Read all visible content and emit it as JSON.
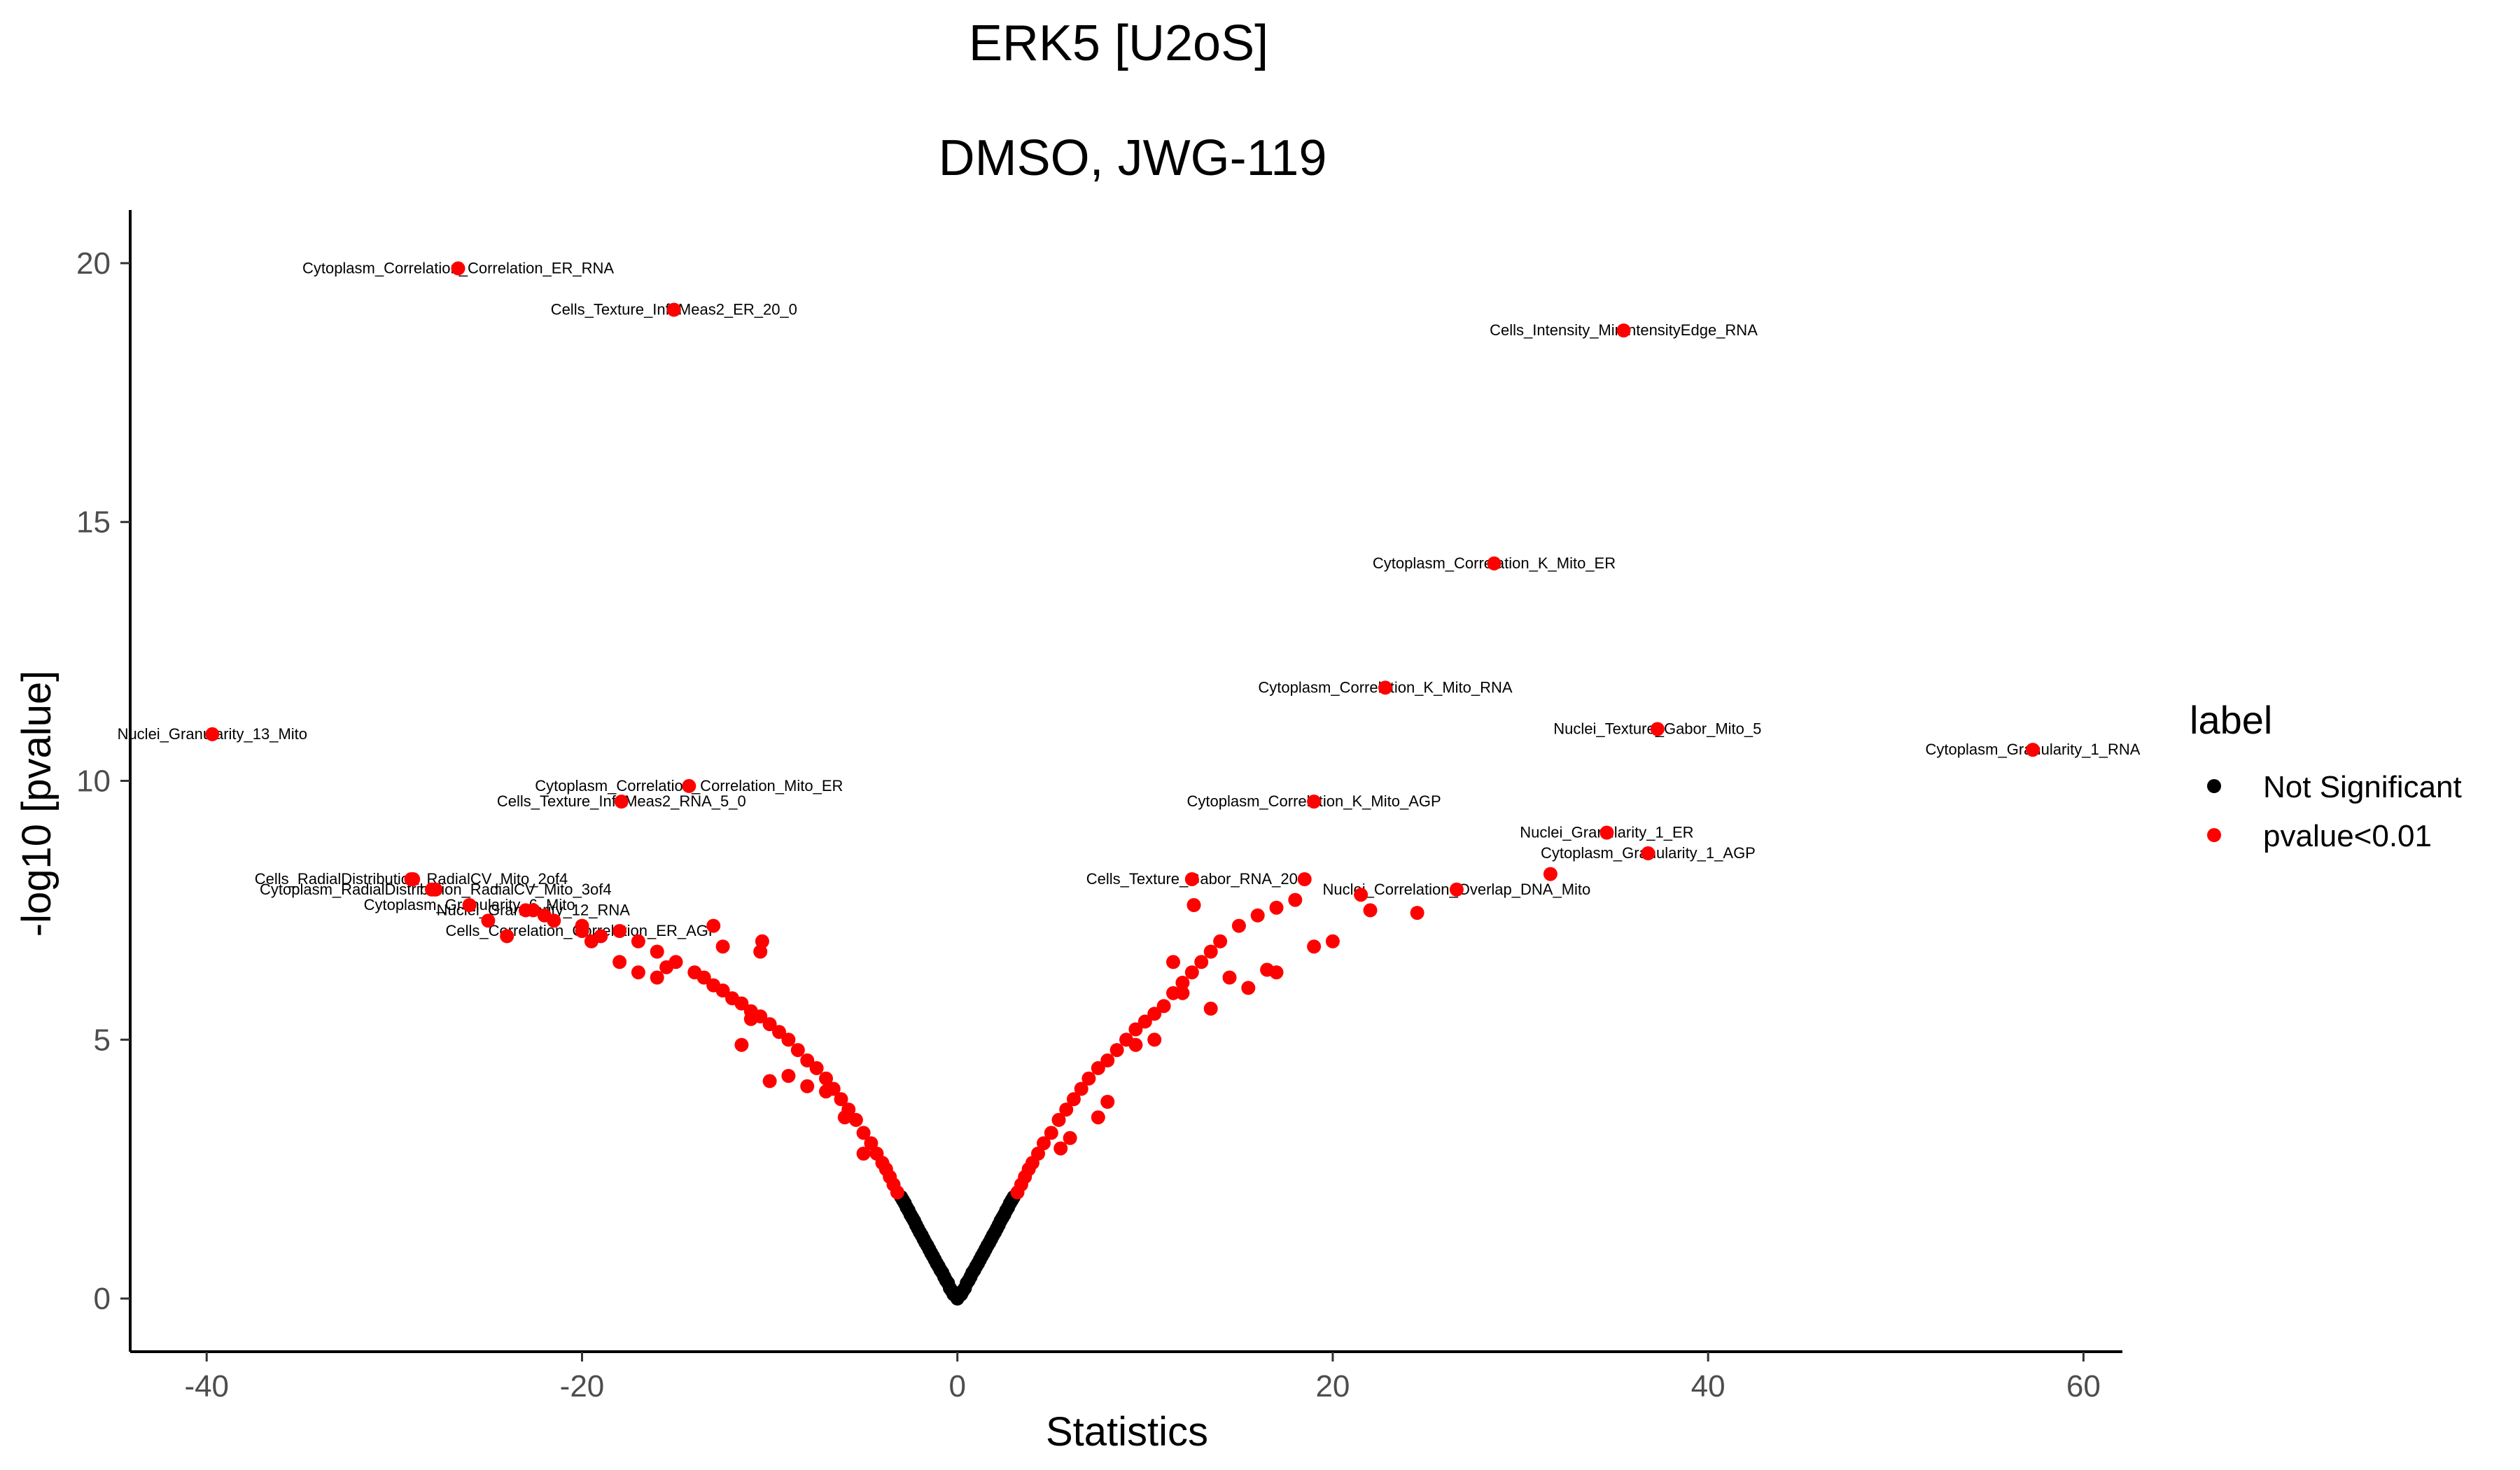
{
  "chart_data": {
    "type": "scatter",
    "title": "ERK5 [U2oS]",
    "subtitle": "DMSO, JWG-119",
    "xlabel": "Statistics",
    "ylabel": "-log10 [pvalue]",
    "xlim": [
      -44,
      62
    ],
    "ylim": [
      -1,
      21
    ],
    "x_ticks": [
      -40,
      -20,
      0,
      20,
      40,
      60
    ],
    "y_ticks": [
      0,
      5,
      10,
      15,
      20
    ],
    "x_tick_labels": [
      "-40",
      "-20",
      "0",
      "20",
      "40",
      "60"
    ],
    "y_tick_labels": [
      "0",
      "5",
      "10",
      "15",
      "20"
    ],
    "grid": false,
    "legend": {
      "title": "label",
      "position": "right",
      "entries": [
        {
          "label": "Not Significant",
          "color": "#000000"
        },
        {
          "label": "pvalue<0.01",
          "color": "#ff0000"
        }
      ]
    },
    "series": [
      {
        "name": "Not Significant",
        "color": "#000000",
        "points": [
          [
            0,
            0
          ],
          [
            0.2,
            0.08
          ],
          [
            -0.2,
            0.08
          ],
          [
            0.3,
            0.15
          ],
          [
            -0.3,
            0.15
          ],
          [
            0.4,
            0.2
          ],
          [
            -0.4,
            0.2
          ],
          [
            0.5,
            0.3
          ],
          [
            -0.5,
            0.3
          ],
          [
            0.6,
            0.35
          ],
          [
            -0.6,
            0.35
          ],
          [
            0.7,
            0.42
          ],
          [
            -0.7,
            0.42
          ],
          [
            0.8,
            0.5
          ],
          [
            -0.8,
            0.5
          ],
          [
            0.9,
            0.55
          ],
          [
            -0.9,
            0.55
          ],
          [
            1.0,
            0.62
          ],
          [
            -1.0,
            0.62
          ],
          [
            1.1,
            0.68
          ],
          [
            -1.1,
            0.68
          ],
          [
            1.2,
            0.75
          ],
          [
            -1.2,
            0.75
          ],
          [
            1.3,
            0.82
          ],
          [
            -1.3,
            0.82
          ],
          [
            1.4,
            0.88
          ],
          [
            -1.4,
            0.88
          ],
          [
            1.5,
            0.95
          ],
          [
            -1.5,
            0.95
          ],
          [
            1.6,
            1.02
          ],
          [
            -1.6,
            1.02
          ],
          [
            1.7,
            1.08
          ],
          [
            -1.7,
            1.08
          ],
          [
            1.8,
            1.15
          ],
          [
            -1.8,
            1.15
          ],
          [
            1.9,
            1.22
          ],
          [
            -1.9,
            1.22
          ],
          [
            2.0,
            1.28
          ],
          [
            -2.0,
            1.28
          ],
          [
            2.1,
            1.35
          ],
          [
            -2.1,
            1.35
          ],
          [
            2.2,
            1.42
          ],
          [
            -2.2,
            1.42
          ],
          [
            2.3,
            1.5
          ],
          [
            -2.3,
            1.5
          ],
          [
            2.4,
            1.56
          ],
          [
            -2.4,
            1.56
          ],
          [
            2.5,
            1.62
          ],
          [
            -2.5,
            1.62
          ],
          [
            2.6,
            1.7
          ],
          [
            -2.6,
            1.7
          ],
          [
            2.7,
            1.76
          ],
          [
            -2.7,
            1.76
          ],
          [
            2.8,
            1.84
          ],
          [
            -2.8,
            1.84
          ],
          [
            2.9,
            1.9
          ],
          [
            -2.9,
            1.9
          ],
          [
            3.0,
            1.96
          ],
          [
            -3.0,
            1.96
          ]
        ]
      },
      {
        "name": "pvalue<0.01",
        "color": "#ff0000",
        "points": [
          [
            3.2,
            2.05
          ],
          [
            -3.2,
            2.05
          ],
          [
            3.4,
            2.2
          ],
          [
            -3.4,
            2.2
          ],
          [
            3.6,
            2.35
          ],
          [
            -3.6,
            2.35
          ],
          [
            3.8,
            2.5
          ],
          [
            -3.8,
            2.5
          ],
          [
            4.0,
            2.62
          ],
          [
            -4.0,
            2.62
          ],
          [
            4.3,
            2.8
          ],
          [
            -4.3,
            2.8
          ],
          [
            4.6,
            3.0
          ],
          [
            -4.6,
            3.0
          ],
          [
            5.0,
            3.2
          ],
          [
            -5.0,
            3.2
          ],
          [
            5.4,
            3.45
          ],
          [
            -5.4,
            3.45
          ],
          [
            5.8,
            3.65
          ],
          [
            -5.8,
            3.65
          ],
          [
            6.2,
            3.85
          ],
          [
            -6.2,
            3.85
          ],
          [
            6.6,
            4.05
          ],
          [
            -6.6,
            4.05
          ],
          [
            7.0,
            4.25
          ],
          [
            -7.0,
            4.25
          ],
          [
            7.5,
            4.45
          ],
          [
            -7.5,
            4.45
          ],
          [
            8.0,
            4.6
          ],
          [
            -8.0,
            4.6
          ],
          [
            8.5,
            4.8
          ],
          [
            -8.5,
            4.8
          ],
          [
            9.0,
            5.0
          ],
          [
            -9.0,
            5.0
          ],
          [
            9.5,
            5.2
          ],
          [
            -9.5,
            5.15
          ],
          [
            10.0,
            5.35
          ],
          [
            -10.0,
            5.3
          ],
          [
            10.5,
            5.5
          ],
          [
            -10.5,
            5.45
          ],
          [
            11.0,
            5.65
          ],
          [
            -11.0,
            5.55
          ],
          [
            11.5,
            5.9
          ],
          [
            -11.5,
            5.7
          ],
          [
            12.0,
            6.1
          ],
          [
            -12.0,
            5.8
          ],
          [
            12.5,
            6.3
          ],
          [
            -12.5,
            5.95
          ],
          [
            13.0,
            6.5
          ],
          [
            -13.0,
            6.05
          ],
          [
            13.5,
            6.7
          ],
          [
            -13.5,
            6.2
          ],
          [
            14.0,
            6.9
          ],
          [
            -14.0,
            6.3
          ],
          [
            15.0,
            7.2
          ],
          [
            -15.0,
            6.5
          ],
          [
            16.0,
            7.4
          ],
          [
            -16.0,
            6.7
          ],
          [
            17.0,
            7.55
          ],
          [
            -17.0,
            6.9
          ],
          [
            18.0,
            7.7
          ],
          [
            -18.0,
            7.1
          ],
          [
            19.0,
            6.8
          ],
          [
            -19.0,
            7.0
          ],
          [
            20.0,
            6.9
          ],
          [
            -20.0,
            7.2
          ],
          [
            21.5,
            7.8
          ],
          [
            -21.5,
            7.3
          ],
          [
            22.0,
            7.5
          ],
          [
            -22.0,
            7.4
          ],
          [
            24.5,
            7.45
          ],
          [
            -23.0,
            7.5
          ],
          [
            -24.0,
            7.0
          ],
          [
            -25.0,
            7.3
          ],
          [
            -10.5,
            6.7
          ],
          [
            -11.0,
            5.4
          ],
          [
            -9.0,
            4.3
          ],
          [
            -8.0,
            4.1
          ],
          [
            -7.0,
            4.0
          ],
          [
            7.5,
            3.5
          ],
          [
            8.0,
            3.8
          ],
          [
            6.0,
            3.1
          ],
          [
            -6.0,
            3.5
          ],
          [
            -5.0,
            2.8
          ],
          [
            5.5,
            2.9
          ],
          [
            11.5,
            6.5
          ],
          [
            12.0,
            5.9
          ],
          [
            14.5,
            6.2
          ],
          [
            16.5,
            6.35
          ],
          [
            -26.0,
            7.6
          ],
          [
            -28.0,
            7.9
          ],
          [
            -29.0,
            8.1
          ],
          [
            -13.0,
            7.2
          ],
          [
            -12.5,
            6.8
          ],
          [
            -15.5,
            6.4
          ],
          [
            -16.0,
            6.2
          ],
          [
            -17.0,
            6.3
          ],
          [
            -18.0,
            6.5
          ],
          [
            -19.5,
            6.9
          ],
          [
            -11.5,
            4.9
          ],
          [
            -10.0,
            4.2
          ],
          [
            9.5,
            4.9
          ],
          [
            10.5,
            5.0
          ],
          [
            13.5,
            5.6
          ],
          [
            15.5,
            6.0
          ],
          [
            17.0,
            6.3
          ],
          [
            12.6,
            7.6
          ],
          [
            12.5,
            8.1
          ],
          [
            18.5,
            8.1
          ],
          [
            19.0,
            9.6
          ],
          [
            22.8,
            11.8
          ],
          [
            28.6,
            14.2
          ],
          [
            26.6,
            7.9
          ],
          [
            31.6,
            8.2
          ],
          [
            34.6,
            9.0
          ],
          [
            36.8,
            8.6
          ],
          [
            37.3,
            11.0
          ],
          [
            35.5,
            18.7
          ],
          [
            57.3,
            10.6
          ],
          [
            -26.6,
            19.9
          ],
          [
            -15.1,
            19.1
          ],
          [
            -39.7,
            10.9
          ],
          [
            -14.3,
            9.9
          ],
          [
            -17.9,
            9.6
          ],
          [
            -29.1,
            8.1
          ],
          [
            -27.8,
            7.9
          ],
          [
            -20.0,
            7.1
          ],
          [
            -10.4,
            6.9
          ],
          [
            -22.6,
            7.5
          ]
        ]
      }
    ],
    "annotations": [
      {
        "text": "Cytoplasm_Correlation_Correlation_ER_RNA",
        "x": -26.6,
        "y": 19.9
      },
      {
        "text": "Cells_Texture_InfoMeas2_ER_20_0",
        "x": -15.1,
        "y": 19.1
      },
      {
        "text": "Cells_Intensity_MinIntensityEdge_RNA",
        "x": 35.5,
        "y": 18.7
      },
      {
        "text": "Cytoplasm_Correlation_K_Mito_ER",
        "x": 28.6,
        "y": 14.2
      },
      {
        "text": "Cytoplasm_Correlation_K_Mito_RNA",
        "x": 22.8,
        "y": 11.8
      },
      {
        "text": "Nuclei_Texture_Gabor_Mito_5",
        "x": 37.3,
        "y": 11.0
      },
      {
        "text": "Cytoplasm_Granularity_1_RNA",
        "x": 57.3,
        "y": 10.6
      },
      {
        "text": "Nuclei_Granularity_13_Mito",
        "x": -39.7,
        "y": 10.9
      },
      {
        "text": "Cytoplasm_Correlation_Correlation_Mito_ER",
        "x": -14.3,
        "y": 9.9
      },
      {
        "text": "Cells_Texture_InfoMeas2_RNA_5_0",
        "x": -17.9,
        "y": 9.6
      },
      {
        "text": "Cytoplasm_Correlation_K_Mito_AGP",
        "x": 19.0,
        "y": 9.6
      },
      {
        "text": "Nuclei_Granularity_1_ER",
        "x": 34.6,
        "y": 9.0
      },
      {
        "text": "Cytoplasm_Granularity_1_AGP",
        "x": 36.8,
        "y": 8.6
      },
      {
        "text": "Cells_RadialDistribution_RadialCV_Mito_2of4",
        "x": -29.1,
        "y": 8.1
      },
      {
        "text": "Cytoplasm_RadialDistribution_RadialCV_Mito_3of4",
        "x": -27.8,
        "y": 7.9
      },
      {
        "text": "Cells_Texture_Gabor_RNA_20",
        "x": 12.5,
        "y": 8.1
      },
      {
        "text": "Nuclei_Correlation_Overlap_DNA_Mito",
        "x": 26.6,
        "y": 7.9
      },
      {
        "text": "Nuclei_Granularity_12_RNA",
        "x": -22.6,
        "y": 7.5
      },
      {
        "text": "Cytoplasm_Granularity_6_Mito",
        "x": -26.0,
        "y": 7.6
      },
      {
        "text": "Cells_Correlation_Correlation_ER_AGP",
        "x": -20.0,
        "y": 7.1
      }
    ]
  }
}
